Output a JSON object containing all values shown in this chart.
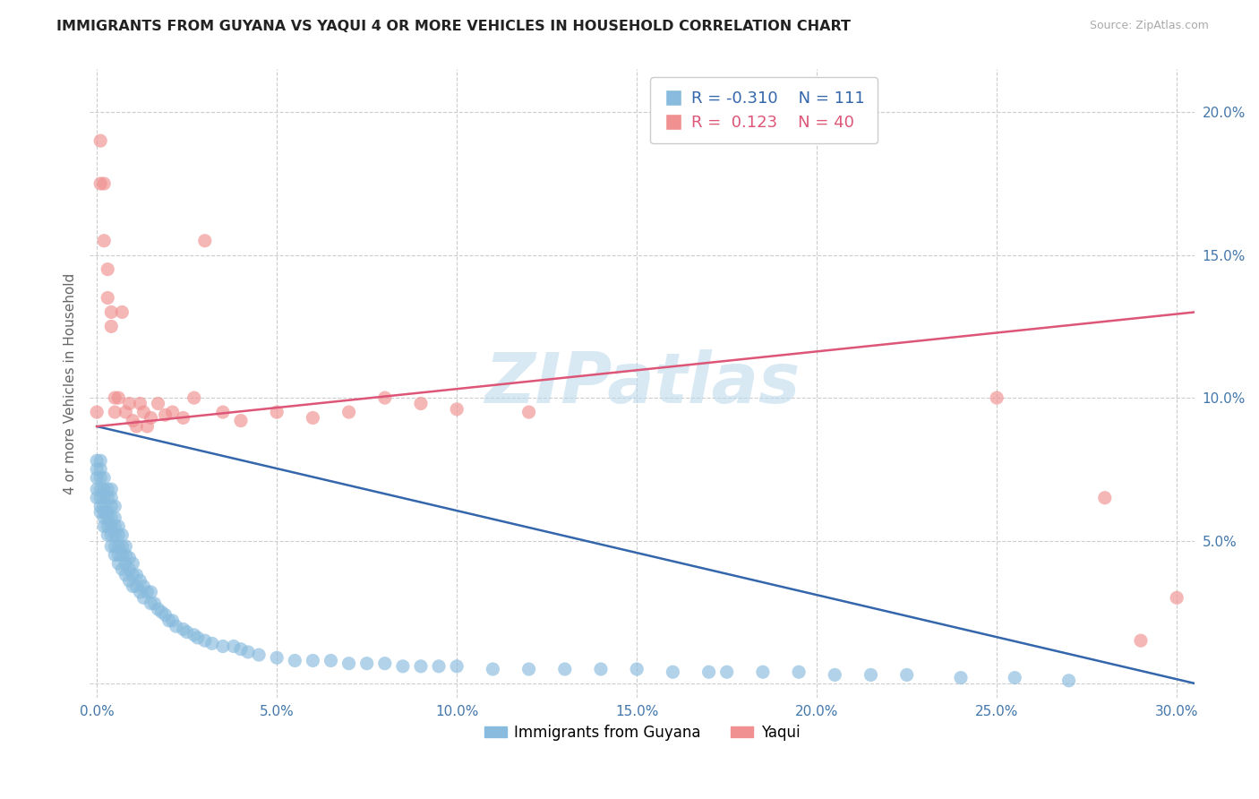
{
  "title": "IMMIGRANTS FROM GUYANA VS YAQUI 4 OR MORE VEHICLES IN HOUSEHOLD CORRELATION CHART",
  "source_text": "Source: ZipAtlas.com",
  "ylabel": "4 or more Vehicles in Household",
  "xlim": [
    -0.002,
    0.305
  ],
  "ylim": [
    -0.005,
    0.215
  ],
  "xtick_vals": [
    0.0,
    0.05,
    0.1,
    0.15,
    0.2,
    0.25,
    0.3
  ],
  "xtick_labels": [
    "0.0%",
    "5.0%",
    "10.0%",
    "15.0%",
    "20.0%",
    "25.0%",
    "30.0%"
  ],
  "ytick_vals": [
    0.0,
    0.05,
    0.1,
    0.15,
    0.2
  ],
  "ytick_labels": [
    "",
    "5.0%",
    "10.0%",
    "15.0%",
    "20.0%"
  ],
  "blue_color": "#88bbdd",
  "pink_color": "#f09090",
  "blue_line_color": "#3366aa",
  "pink_line_color": "#dd5577",
  "watermark": "ZIPatlas",
  "bg_color": "#ffffff",
  "grid_color": "#cccccc",
  "legend_blue_R": "-0.310",
  "legend_blue_N": "111",
  "legend_pink_R": "0.123",
  "legend_pink_N": "40",
  "legend_blue_label": "Immigrants from Guyana",
  "legend_pink_label": "Yaqui",
  "blue_trend_x": [
    0.0,
    0.305
  ],
  "blue_trend_y": [
    0.09,
    0.0
  ],
  "pink_trend_x": [
    0.0,
    0.305
  ],
  "pink_trend_y": [
    0.09,
    0.13
  ],
  "blue_x": [
    0.0,
    0.0,
    0.0,
    0.0,
    0.0,
    0.001,
    0.001,
    0.001,
    0.001,
    0.001,
    0.001,
    0.001,
    0.002,
    0.002,
    0.002,
    0.002,
    0.002,
    0.002,
    0.002,
    0.003,
    0.003,
    0.003,
    0.003,
    0.003,
    0.003,
    0.004,
    0.004,
    0.004,
    0.004,
    0.004,
    0.004,
    0.004,
    0.005,
    0.005,
    0.005,
    0.005,
    0.005,
    0.005,
    0.006,
    0.006,
    0.006,
    0.006,
    0.006,
    0.007,
    0.007,
    0.007,
    0.007,
    0.008,
    0.008,
    0.008,
    0.008,
    0.009,
    0.009,
    0.009,
    0.01,
    0.01,
    0.01,
    0.011,
    0.011,
    0.012,
    0.012,
    0.013,
    0.013,
    0.014,
    0.015,
    0.015,
    0.016,
    0.017,
    0.018,
    0.019,
    0.02,
    0.021,
    0.022,
    0.024,
    0.025,
    0.027,
    0.028,
    0.03,
    0.032,
    0.035,
    0.038,
    0.04,
    0.042,
    0.045,
    0.05,
    0.055,
    0.06,
    0.065,
    0.07,
    0.075,
    0.08,
    0.085,
    0.09,
    0.095,
    0.1,
    0.11,
    0.12,
    0.13,
    0.14,
    0.15,
    0.16,
    0.17,
    0.175,
    0.185,
    0.195,
    0.205,
    0.215,
    0.225,
    0.24,
    0.255,
    0.27
  ],
  "blue_y": [
    0.065,
    0.068,
    0.072,
    0.075,
    0.078,
    0.06,
    0.062,
    0.065,
    0.068,
    0.072,
    0.075,
    0.078,
    0.055,
    0.058,
    0.06,
    0.062,
    0.065,
    0.068,
    0.072,
    0.052,
    0.055,
    0.058,
    0.06,
    0.065,
    0.068,
    0.048,
    0.052,
    0.055,
    0.058,
    0.062,
    0.065,
    0.068,
    0.045,
    0.048,
    0.052,
    0.055,
    0.058,
    0.062,
    0.042,
    0.045,
    0.048,
    0.052,
    0.055,
    0.04,
    0.045,
    0.048,
    0.052,
    0.038,
    0.042,
    0.045,
    0.048,
    0.036,
    0.04,
    0.044,
    0.034,
    0.038,
    0.042,
    0.034,
    0.038,
    0.032,
    0.036,
    0.03,
    0.034,
    0.032,
    0.028,
    0.032,
    0.028,
    0.026,
    0.025,
    0.024,
    0.022,
    0.022,
    0.02,
    0.019,
    0.018,
    0.017,
    0.016,
    0.015,
    0.014,
    0.013,
    0.013,
    0.012,
    0.011,
    0.01,
    0.009,
    0.008,
    0.008,
    0.008,
    0.007,
    0.007,
    0.007,
    0.006,
    0.006,
    0.006,
    0.006,
    0.005,
    0.005,
    0.005,
    0.005,
    0.005,
    0.004,
    0.004,
    0.004,
    0.004,
    0.004,
    0.003,
    0.003,
    0.003,
    0.002,
    0.002,
    0.001
  ],
  "pink_x": [
    0.0,
    0.001,
    0.001,
    0.002,
    0.002,
    0.003,
    0.003,
    0.004,
    0.004,
    0.005,
    0.005,
    0.006,
    0.007,
    0.008,
    0.009,
    0.01,
    0.011,
    0.012,
    0.013,
    0.014,
    0.015,
    0.017,
    0.019,
    0.021,
    0.024,
    0.027,
    0.03,
    0.035,
    0.04,
    0.05,
    0.06,
    0.07,
    0.08,
    0.09,
    0.1,
    0.12,
    0.25,
    0.28,
    0.29,
    0.3
  ],
  "pink_y": [
    0.095,
    0.19,
    0.175,
    0.175,
    0.155,
    0.145,
    0.135,
    0.13,
    0.125,
    0.1,
    0.095,
    0.1,
    0.13,
    0.095,
    0.098,
    0.092,
    0.09,
    0.098,
    0.095,
    0.09,
    0.093,
    0.098,
    0.094,
    0.095,
    0.093,
    0.1,
    0.155,
    0.095,
    0.092,
    0.095,
    0.093,
    0.095,
    0.1,
    0.098,
    0.096,
    0.095,
    0.1,
    0.065,
    0.015,
    0.03
  ]
}
